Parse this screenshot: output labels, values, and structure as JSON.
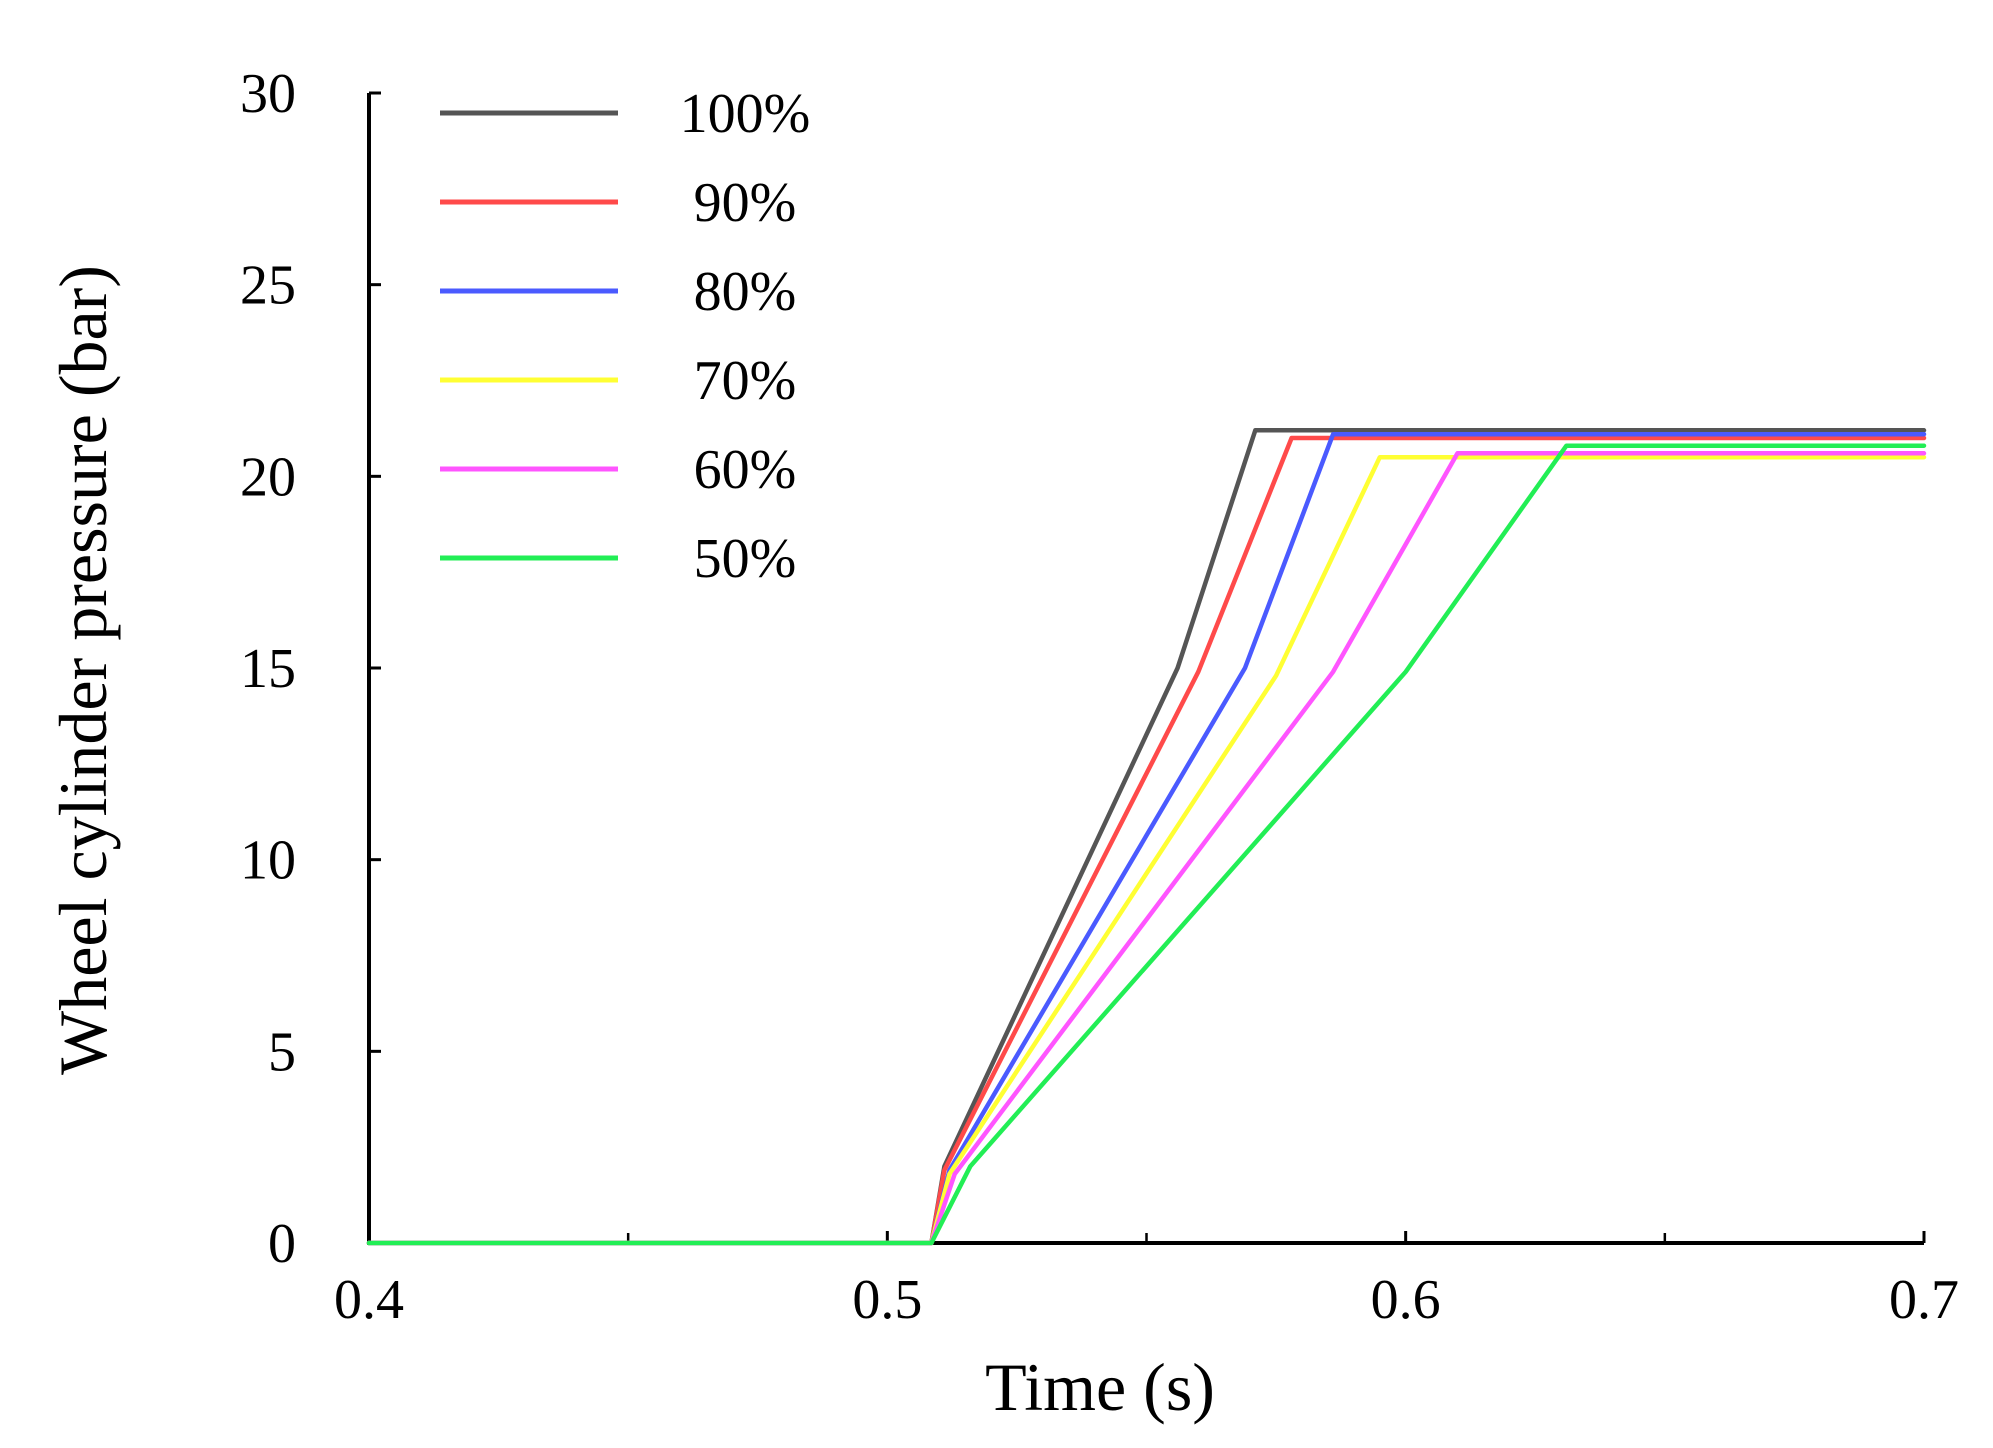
{
  "chart_data": {
    "type": "line",
    "title": "",
    "xlabel": "Time (s)",
    "ylabel": "Wheel cylinder pressure (bar)",
    "xlim": [
      0.4,
      0.7
    ],
    "ylim": [
      0,
      30
    ],
    "xticks": [
      0.4,
      0.5,
      0.6,
      0.7
    ],
    "xtick_labels": [
      "0.4",
      "0.5",
      "0.6",
      "0.7"
    ],
    "xminor_ticks": [
      0.45,
      0.55,
      0.65
    ],
    "yticks": [
      0,
      5,
      10,
      15,
      20,
      25,
      30
    ],
    "ytick_labels": [
      "0",
      "5",
      "10",
      "15",
      "20",
      "25",
      "30"
    ],
    "grid": false,
    "legend_position": "top-left",
    "series": [
      {
        "name": "100%",
        "color": "#555555",
        "x": [
          0.4,
          0.5085,
          0.511,
          0.556,
          0.571,
          0.7
        ],
        "y": [
          0,
          0,
          2.0,
          15.0,
          21.2,
          21.2
        ]
      },
      {
        "name": "90%",
        "color": "#ff4a4a",
        "x": [
          0.4,
          0.5085,
          0.511,
          0.56,
          0.578,
          0.7
        ],
        "y": [
          0,
          0,
          1.9,
          14.9,
          21.0,
          21.0
        ]
      },
      {
        "name": "80%",
        "color": "#4a5aff",
        "x": [
          0.4,
          0.5085,
          0.512,
          0.569,
          0.586,
          0.7
        ],
        "y": [
          0,
          0,
          1.9,
          15.0,
          21.1,
          21.1
        ]
      },
      {
        "name": "70%",
        "color": "#ffff33",
        "x": [
          0.4,
          0.5085,
          0.512,
          0.575,
          0.595,
          0.7
        ],
        "y": [
          0,
          0,
          1.8,
          14.8,
          20.5,
          20.5
        ]
      },
      {
        "name": "60%",
        "color": "#ff55ff",
        "x": [
          0.4,
          0.5085,
          0.513,
          0.586,
          0.61,
          0.7
        ],
        "y": [
          0,
          0,
          1.8,
          14.9,
          20.6,
          20.6
        ]
      },
      {
        "name": "50%",
        "color": "#22ee55",
        "x": [
          0.4,
          0.5085,
          0.516,
          0.6,
          0.631,
          0.7
        ],
        "y": [
          0,
          0,
          2.0,
          14.9,
          20.8,
          20.8
        ]
      }
    ]
  }
}
